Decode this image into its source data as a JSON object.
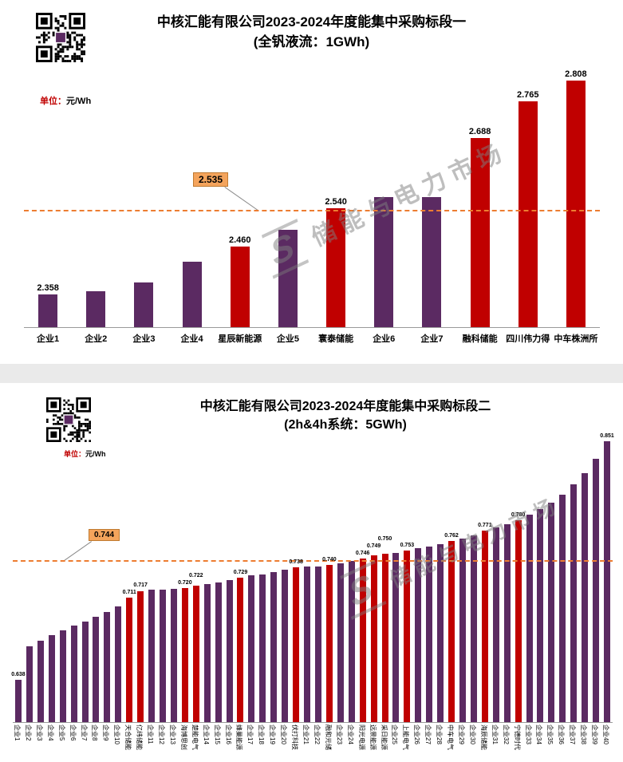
{
  "colors": {
    "purple": "#5B2A62",
    "red": "#C00000",
    "reference_line": "#ED7D31",
    "reference_label_bg": "#F4A45C",
    "watermark_gray": "#7D7D7D"
  },
  "chart_data": [
    {
      "type": "bar",
      "title": "中核汇能有限公司2023-2024年度能集中采购标段一",
      "subtitle": "(全钒液流：1GWh)",
      "unit_prefix": "单位：",
      "unit_suffix": "元/Wh",
      "watermark": "储能与电力市场",
      "categories": [
        "企业1",
        "企业2",
        "企业3",
        "企业4",
        "星辰新能源",
        "企业5",
        "寰泰储能",
        "企业6",
        "企业7",
        "融科储能",
        "四川伟力得",
        "中车株洲所"
      ],
      "values": [
        2.358,
        2.366,
        2.384,
        2.428,
        2.46,
        2.495,
        2.54,
        2.563,
        2.563,
        2.688,
        2.765,
        2.808
      ],
      "bar_colors": [
        "purple",
        "purple",
        "purple",
        "purple",
        "red",
        "purple",
        "red",
        "purple",
        "purple",
        "red",
        "red",
        "red"
      ],
      "data_labels": [
        "2.358",
        null,
        null,
        null,
        "2.460",
        null,
        "2.540",
        null,
        null,
        "2.688",
        "2.765",
        "2.808"
      ],
      "reference_line": {
        "value": 2.535,
        "label": "2.535"
      },
      "ylim": [
        2.29,
        2.86
      ],
      "grid": false,
      "legend": false
    },
    {
      "type": "bar",
      "title": "中核汇能有限公司2023-2024年度能集中采购标段二",
      "subtitle": "(2h&4h系统：5GWh)",
      "unit_prefix": "单位：",
      "unit_suffix": "元/Wh",
      "watermark": "储能与电力市场",
      "categories": [
        "企业1",
        "企业2",
        "企业3",
        "企业4",
        "企业5",
        "企业6",
        "企业7",
        "企业8",
        "企业9",
        "企业10",
        "天合储能",
        "亿纬储能",
        "企业11",
        "企业12",
        "企业13",
        "海博思创",
        "楚能电气",
        "企业14",
        "企业15",
        "企业16",
        "蜂巢能源",
        "企业17",
        "企业18",
        "企业19",
        "企业20",
        "伏打科技",
        "企业21",
        "企业22",
        "融和元储",
        "企业23",
        "企业24",
        "阳光电源",
        "远景能源",
        "采日能源",
        "企业25",
        "上能电气",
        "企业26",
        "企业27",
        "企业28",
        "中车电气",
        "企业29",
        "企业30",
        "海辰储能",
        "企业31",
        "企业32",
        "宁德时代",
        "企业33",
        "企业34",
        "企业35",
        "企业36",
        "企业37",
        "企业38",
        "企业39",
        "企业40"
      ],
      "values": [
        0.638,
        0.668,
        0.673,
        0.678,
        0.682,
        0.686,
        0.69,
        0.694,
        0.698,
        0.703,
        0.711,
        0.717,
        0.718,
        0.718,
        0.719,
        0.72,
        0.722,
        0.723,
        0.725,
        0.727,
        0.729,
        0.731,
        0.732,
        0.734,
        0.736,
        0.738,
        0.739,
        0.739,
        0.74,
        0.742,
        0.744,
        0.746,
        0.749,
        0.75,
        0.751,
        0.753,
        0.755,
        0.757,
        0.759,
        0.762,
        0.764,
        0.767,
        0.771,
        0.774,
        0.777,
        0.78,
        0.785,
        0.79,
        0.796,
        0.803,
        0.812,
        0.822,
        0.835,
        0.851
      ],
      "bar_colors": [
        "purple",
        "purple",
        "purple",
        "purple",
        "purple",
        "purple",
        "purple",
        "purple",
        "purple",
        "purple",
        "red",
        "red",
        "purple",
        "purple",
        "purple",
        "red",
        "red",
        "purple",
        "purple",
        "purple",
        "red",
        "purple",
        "purple",
        "purple",
        "purple",
        "red",
        "purple",
        "purple",
        "red",
        "purple",
        "purple",
        "red",
        "red",
        "red",
        "purple",
        "red",
        "purple",
        "purple",
        "purple",
        "red",
        "purple",
        "purple",
        "red",
        "purple",
        "purple",
        "red",
        "purple",
        "purple",
        "purple",
        "purple",
        "purple",
        "purple",
        "purple",
        "purple"
      ],
      "data_labels": [
        "0.638",
        null,
        null,
        null,
        null,
        null,
        null,
        null,
        null,
        null,
        "0.711",
        "0.717",
        null,
        null,
        null,
        "0.720",
        "0.722",
        null,
        null,
        null,
        "0.729",
        null,
        null,
        null,
        null,
        "0.738",
        null,
        null,
        "0.740",
        null,
        null,
        "0.746",
        "0.749",
        "0.750",
        null,
        "0.753",
        null,
        null,
        null,
        "0.762",
        null,
        null,
        "0.771",
        null,
        null,
        "0.780",
        null,
        null,
        null,
        null,
        null,
        null,
        null,
        "0.851"
      ],
      "reference_line": {
        "value": 0.744,
        "label": "0.744"
      },
      "ylim": [
        0.6,
        0.86
      ],
      "grid": false,
      "legend": false
    }
  ]
}
